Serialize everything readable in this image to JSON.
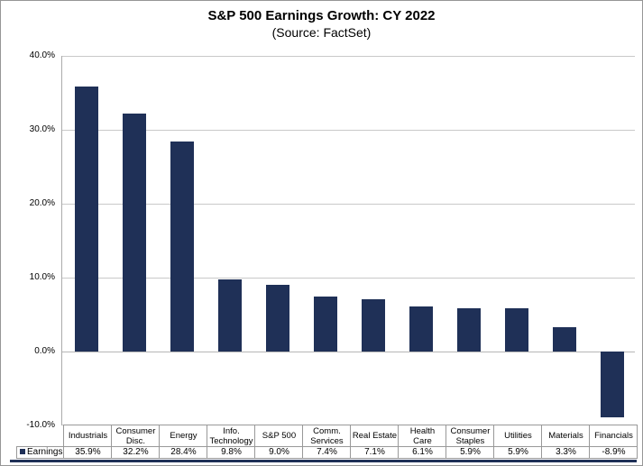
{
  "title": "S&P 500 Earnings Growth: CY 2022",
  "subtitle": "(Source: FactSet)",
  "colors": {
    "bar": "#1f3057",
    "gridline": "#c9c9c9",
    "axis": "#ababab",
    "table_border": "#999999",
    "accent_line": "#1f3057",
    "frame": "#969696"
  },
  "legend": {
    "series_label": "Earnings",
    "marker_icon": "navy-square"
  },
  "y_axis": {
    "min": -10,
    "max": 40,
    "step": 10,
    "tick_labels": [
      "40.0%",
      "30.0%",
      "20.0%",
      "10.0%",
      "0.0%",
      "-10.0%"
    ]
  },
  "chart_data": {
    "type": "bar",
    "title": "S&P 500 Earnings Growth: CY 2022",
    "subtitle": "(Source: FactSet)",
    "categories": [
      "Industrials",
      "Consumer\nDisc.",
      "Energy",
      "Info.\nTechnology",
      "S&P 500",
      "Comm.\nServices",
      "Real Estate",
      "Health\nCare",
      "Consumer\nStaples",
      "Utilities",
      "Materials",
      "Financials"
    ],
    "series": [
      {
        "name": "Earnings",
        "values": [
          35.9,
          32.2,
          28.4,
          9.8,
          9.0,
          7.4,
          7.1,
          6.1,
          5.9,
          5.9,
          3.3,
          -8.9
        ],
        "value_labels": [
          "35.9%",
          "32.2%",
          "28.4%",
          "9.8%",
          "9.0%",
          "7.4%",
          "7.1%",
          "6.1%",
          "5.9%",
          "5.9%",
          "3.3%",
          "-8.9%"
        ]
      }
    ],
    "ylim": [
      -10,
      40
    ],
    "grid": true,
    "legend_position": "bottom-table-left",
    "data_table_shown": true
  }
}
